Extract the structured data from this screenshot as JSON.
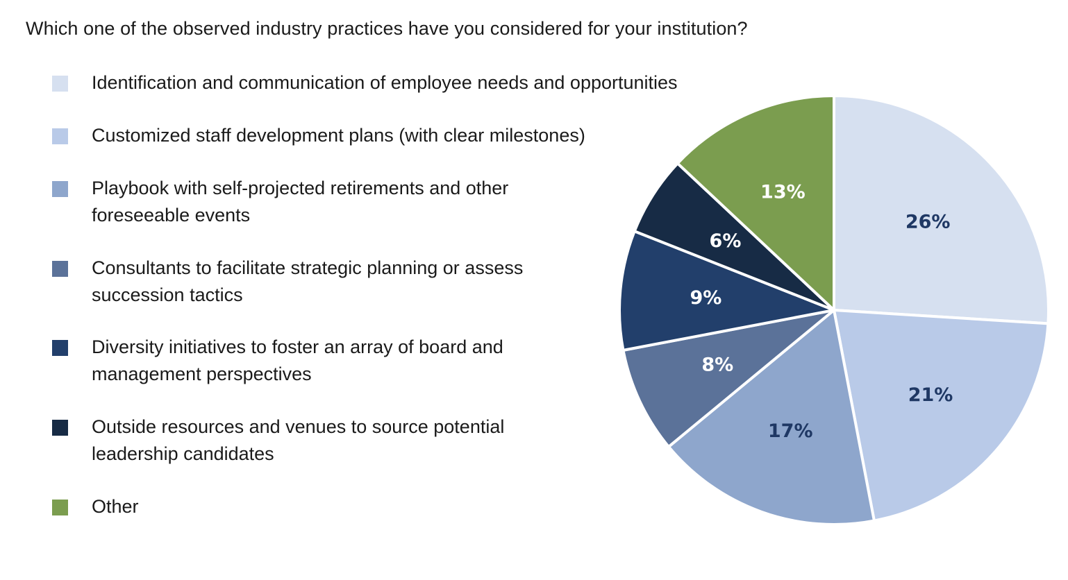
{
  "question": "Which one of the observed industry practices have you considered for your institution?",
  "chart_data": {
    "type": "pie",
    "title": "",
    "start_angle_deg": 0,
    "direction": "clockwise",
    "slices": [
      {
        "label_lines": [
          "Identification and communication of employee needs and opportunities"
        ],
        "value": 26,
        "display": "26%",
        "color": "#d6e0f0",
        "text_color": "#1f3864"
      },
      {
        "label_lines": [
          "Customized staff development plans (with clear milestones)"
        ],
        "value": 21,
        "display": "21%",
        "color": "#b9cae8",
        "text_color": "#1f3864"
      },
      {
        "label_lines": [
          "Playbook with self-projected retirements and other",
          "foreseeable events"
        ],
        "value": 17,
        "display": "17%",
        "color": "#8ea6cc",
        "text_color": "#1f3864"
      },
      {
        "label_lines": [
          "Consultants to facilitate strategic planning or assess",
          "succession tactics"
        ],
        "value": 8,
        "display": "8%",
        "color": "#5b7299",
        "text_color": "#ffffff"
      },
      {
        "label_lines": [
          "Diversity initiatives to foster an array of board and",
          "management perspectives"
        ],
        "value": 9,
        "display": "9%",
        "color": "#223f6b",
        "text_color": "#ffffff"
      },
      {
        "label_lines": [
          "Outside resources and venues to source potential",
          "leadership candidates"
        ],
        "value": 6,
        "display": "6%",
        "color": "#172b45",
        "text_color": "#ffffff"
      },
      {
        "label_lines": [
          "Other"
        ],
        "value": 13,
        "display": "13%",
        "color": "#7b9d4f",
        "text_color": "#ffffff"
      }
    ]
  }
}
